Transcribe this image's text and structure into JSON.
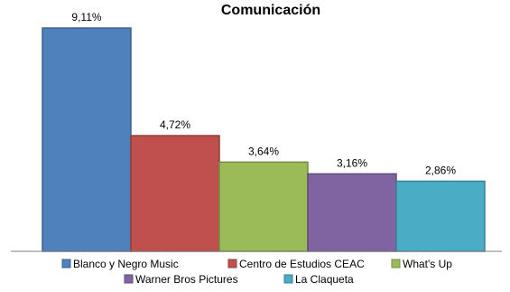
{
  "chart_data": {
    "type": "bar",
    "title": "Comunicación",
    "categories": [
      "Blanco y Negro Music",
      "Centro de Estudios CEAC",
      "What's Up",
      "Warner Bros Pictures",
      "La Claqueta"
    ],
    "values": [
      9.11,
      4.72,
      3.64,
      3.16,
      2.86
    ],
    "value_labels": [
      "9,11%",
      "4,72%",
      "3,64%",
      "3,16%",
      "2,86%"
    ],
    "series": [
      {
        "name": "Blanco y Negro Music",
        "value": 9.11,
        "color": "#4f81bd"
      },
      {
        "name": "Centro de Estudios CEAC",
        "value": 4.72,
        "color": "#c0504d"
      },
      {
        "name": "What's Up",
        "value": 3.64,
        "color": "#9bbb59"
      },
      {
        "name": "Warner Bros Pictures",
        "value": 3.16,
        "color": "#8064a2"
      },
      {
        "name": "La Claqueta",
        "value": 2.86,
        "color": "#4bacc6"
      }
    ],
    "ylim": [
      0,
      9.11
    ],
    "grid": false,
    "legend_position": "bottom"
  }
}
